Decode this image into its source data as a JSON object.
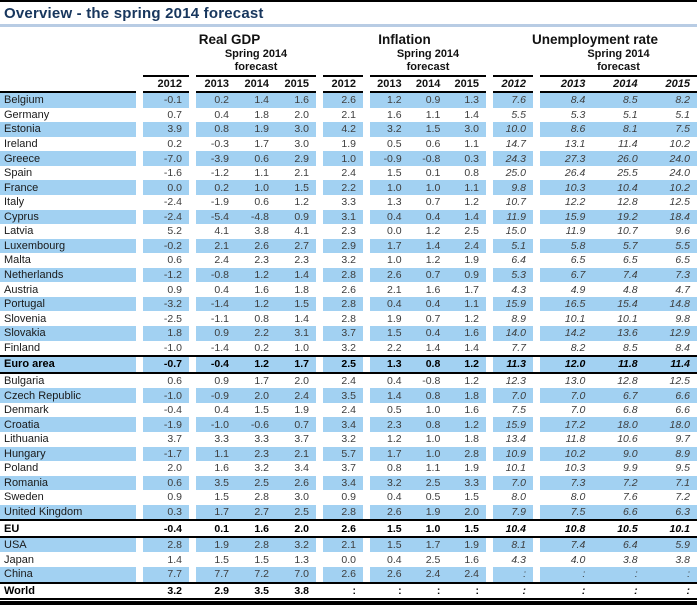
{
  "title": "Overview - the spring 2014 forecast",
  "table": {
    "groups": [
      {
        "label": "Real GDP",
        "forecast_line1": "Spring 2014",
        "forecast_line2": "forecast",
        "years": [
          "2012",
          "2013",
          "2014",
          "2015"
        ]
      },
      {
        "label": "Inflation",
        "forecast_line1": "Spring 2014",
        "forecast_line2": "forecast",
        "years": [
          "2012",
          "2013",
          "2014",
          "2015"
        ]
      },
      {
        "label": "Unemployment rate",
        "forecast_line1": "Spring 2014",
        "forecast_line2": "forecast",
        "years": [
          "2012",
          "2013",
          "2014",
          "2015"
        ]
      }
    ],
    "rows": [
      {
        "name": "Belgium",
        "bold": false,
        "gdp": [
          "-0.1",
          "0.2",
          "1.4",
          "1.6"
        ],
        "inflation": [
          "2.6",
          "1.2",
          "0.9",
          "1.3"
        ],
        "unemployment": [
          "7.6",
          "8.4",
          "8.5",
          "8.2"
        ]
      },
      {
        "name": "Germany",
        "bold": false,
        "gdp": [
          "0.7",
          "0.4",
          "1.8",
          "2.0"
        ],
        "inflation": [
          "2.1",
          "1.6",
          "1.1",
          "1.4"
        ],
        "unemployment": [
          "5.5",
          "5.3",
          "5.1",
          "5.1"
        ]
      },
      {
        "name": "Estonia",
        "bold": false,
        "gdp": [
          "3.9",
          "0.8",
          "1.9",
          "3.0"
        ],
        "inflation": [
          "4.2",
          "3.2",
          "1.5",
          "3.0"
        ],
        "unemployment": [
          "10.0",
          "8.6",
          "8.1",
          "7.5"
        ]
      },
      {
        "name": "Ireland",
        "bold": false,
        "gdp": [
          "0.2",
          "-0.3",
          "1.7",
          "3.0"
        ],
        "inflation": [
          "1.9",
          "0.5",
          "0.6",
          "1.1"
        ],
        "unemployment": [
          "14.7",
          "13.1",
          "11.4",
          "10.2"
        ]
      },
      {
        "name": "Greece",
        "bold": false,
        "gdp": [
          "-7.0",
          "-3.9",
          "0.6",
          "2.9"
        ],
        "inflation": [
          "1.0",
          "-0.9",
          "-0.8",
          "0.3"
        ],
        "unemployment": [
          "24.3",
          "27.3",
          "26.0",
          "24.0"
        ]
      },
      {
        "name": "Spain",
        "bold": false,
        "gdp": [
          "-1.6",
          "-1.2",
          "1.1",
          "2.1"
        ],
        "inflation": [
          "2.4",
          "1.5",
          "0.1",
          "0.8"
        ],
        "unemployment": [
          "25.0",
          "26.4",
          "25.5",
          "24.0"
        ]
      },
      {
        "name": "France",
        "bold": false,
        "gdp": [
          "0.0",
          "0.2",
          "1.0",
          "1.5"
        ],
        "inflation": [
          "2.2",
          "1.0",
          "1.0",
          "1.1"
        ],
        "unemployment": [
          "9.8",
          "10.3",
          "10.4",
          "10.2"
        ]
      },
      {
        "name": "Italy",
        "bold": false,
        "gdp": [
          "-2.4",
          "-1.9",
          "0.6",
          "1.2"
        ],
        "inflation": [
          "3.3",
          "1.3",
          "0.7",
          "1.2"
        ],
        "unemployment": [
          "10.7",
          "12.2",
          "12.8",
          "12.5"
        ]
      },
      {
        "name": "Cyprus",
        "bold": false,
        "gdp": [
          "-2.4",
          "-5.4",
          "-4.8",
          "0.9"
        ],
        "inflation": [
          "3.1",
          "0.4",
          "0.4",
          "1.4"
        ],
        "unemployment": [
          "11.9",
          "15.9",
          "19.2",
          "18.4"
        ]
      },
      {
        "name": "Latvia",
        "bold": false,
        "gdp": [
          "5.2",
          "4.1",
          "3.8",
          "4.1"
        ],
        "inflation": [
          "2.3",
          "0.0",
          "1.2",
          "2.5"
        ],
        "unemployment": [
          "15.0",
          "11.9",
          "10.7",
          "9.6"
        ]
      },
      {
        "name": "Luxembourg",
        "bold": false,
        "gdp": [
          "-0.2",
          "2.1",
          "2.6",
          "2.7"
        ],
        "inflation": [
          "2.9",
          "1.7",
          "1.4",
          "2.4"
        ],
        "unemployment": [
          "5.1",
          "5.8",
          "5.7",
          "5.5"
        ]
      },
      {
        "name": "Malta",
        "bold": false,
        "gdp": [
          "0.6",
          "2.4",
          "2.3",
          "2.3"
        ],
        "inflation": [
          "3.2",
          "1.0",
          "1.2",
          "1.9"
        ],
        "unemployment": [
          "6.4",
          "6.5",
          "6.5",
          "6.5"
        ]
      },
      {
        "name": "Netherlands",
        "bold": false,
        "gdp": [
          "-1.2",
          "-0.8",
          "1.2",
          "1.4"
        ],
        "inflation": [
          "2.8",
          "2.6",
          "0.7",
          "0.9"
        ],
        "unemployment": [
          "5.3",
          "6.7",
          "7.4",
          "7.3"
        ]
      },
      {
        "name": "Austria",
        "bold": false,
        "gdp": [
          "0.9",
          "0.4",
          "1.6",
          "1.8"
        ],
        "inflation": [
          "2.6",
          "2.1",
          "1.6",
          "1.7"
        ],
        "unemployment": [
          "4.3",
          "4.9",
          "4.8",
          "4.7"
        ]
      },
      {
        "name": "Portugal",
        "bold": false,
        "gdp": [
          "-3.2",
          "-1.4",
          "1.2",
          "1.5"
        ],
        "inflation": [
          "2.8",
          "0.4",
          "0.4",
          "1.1"
        ],
        "unemployment": [
          "15.9",
          "16.5",
          "15.4",
          "14.8"
        ]
      },
      {
        "name": "Slovenia",
        "bold": false,
        "gdp": [
          "-2.5",
          "-1.1",
          "0.8",
          "1.4"
        ],
        "inflation": [
          "2.8",
          "1.9",
          "0.7",
          "1.2"
        ],
        "unemployment": [
          "8.9",
          "10.1",
          "10.1",
          "9.8"
        ]
      },
      {
        "name": "Slovakia",
        "bold": false,
        "gdp": [
          "1.8",
          "0.9",
          "2.2",
          "3.1"
        ],
        "inflation": [
          "3.7",
          "1.5",
          "0.4",
          "1.6"
        ],
        "unemployment": [
          "14.0",
          "14.2",
          "13.6",
          "12.9"
        ]
      },
      {
        "name": "Finland",
        "bold": false,
        "gdp": [
          "-1.0",
          "-1.4",
          "0.2",
          "1.0"
        ],
        "inflation": [
          "3.2",
          "2.2",
          "1.4",
          "1.4"
        ],
        "unemployment": [
          "7.7",
          "8.2",
          "8.5",
          "8.4"
        ]
      },
      {
        "name": "Euro area",
        "bold": true,
        "gdp": [
          "-0.7",
          "-0.4",
          "1.2",
          "1.7"
        ],
        "inflation": [
          "2.5",
          "1.3",
          "0.8",
          "1.2"
        ],
        "unemployment": [
          "11.3",
          "12.0",
          "11.8",
          "11.4"
        ]
      },
      {
        "name": "Bulgaria",
        "bold": false,
        "gdp": [
          "0.6",
          "0.9",
          "1.7",
          "2.0"
        ],
        "inflation": [
          "2.4",
          "0.4",
          "-0.8",
          "1.2"
        ],
        "unemployment": [
          "12.3",
          "13.0",
          "12.8",
          "12.5"
        ]
      },
      {
        "name": "Czech Republic",
        "bold": false,
        "gdp": [
          "-1.0",
          "-0.9",
          "2.0",
          "2.4"
        ],
        "inflation": [
          "3.5",
          "1.4",
          "0.8",
          "1.8"
        ],
        "unemployment": [
          "7.0",
          "7.0",
          "6.7",
          "6.6"
        ]
      },
      {
        "name": "Denmark",
        "bold": false,
        "gdp": [
          "-0.4",
          "0.4",
          "1.5",
          "1.9"
        ],
        "inflation": [
          "2.4",
          "0.5",
          "1.0",
          "1.6"
        ],
        "unemployment": [
          "7.5",
          "7.0",
          "6.8",
          "6.6"
        ]
      },
      {
        "name": "Croatia",
        "bold": false,
        "gdp": [
          "-1.9",
          "-1.0",
          "-0.6",
          "0.7"
        ],
        "inflation": [
          "3.4",
          "2.3",
          "0.8",
          "1.2"
        ],
        "unemployment": [
          "15.9",
          "17.2",
          "18.0",
          "18.0"
        ]
      },
      {
        "name": "Lithuania",
        "bold": false,
        "gdp": [
          "3.7",
          "3.3",
          "3.3",
          "3.7"
        ],
        "inflation": [
          "3.2",
          "1.2",
          "1.0",
          "1.8"
        ],
        "unemployment": [
          "13.4",
          "11.8",
          "10.6",
          "9.7"
        ]
      },
      {
        "name": "Hungary",
        "bold": false,
        "gdp": [
          "-1.7",
          "1.1",
          "2.3",
          "2.1"
        ],
        "inflation": [
          "5.7",
          "1.7",
          "1.0",
          "2.8"
        ],
        "unemployment": [
          "10.9",
          "10.2",
          "9.0",
          "8.9"
        ]
      },
      {
        "name": "Poland",
        "bold": false,
        "gdp": [
          "2.0",
          "1.6",
          "3.2",
          "3.4"
        ],
        "inflation": [
          "3.7",
          "0.8",
          "1.1",
          "1.9"
        ],
        "unemployment": [
          "10.1",
          "10.3",
          "9.9",
          "9.5"
        ]
      },
      {
        "name": "Romania",
        "bold": false,
        "gdp": [
          "0.6",
          "3.5",
          "2.5",
          "2.6"
        ],
        "inflation": [
          "3.4",
          "3.2",
          "2.5",
          "3.3"
        ],
        "unemployment": [
          "7.0",
          "7.3",
          "7.2",
          "7.1"
        ]
      },
      {
        "name": "Sweden",
        "bold": false,
        "gdp": [
          "0.9",
          "1.5",
          "2.8",
          "3.0"
        ],
        "inflation": [
          "0.9",
          "0.4",
          "0.5",
          "1.5"
        ],
        "unemployment": [
          "8.0",
          "8.0",
          "7.6",
          "7.2"
        ]
      },
      {
        "name": "United Kingdom",
        "bold": false,
        "gdp": [
          "0.3",
          "1.7",
          "2.7",
          "2.5"
        ],
        "inflation": [
          "2.8",
          "2.6",
          "1.9",
          "2.0"
        ],
        "unemployment": [
          "7.9",
          "7.5",
          "6.6",
          "6.3"
        ]
      },
      {
        "name": "EU",
        "bold": true,
        "gdp": [
          "-0.4",
          "0.1",
          "1.6",
          "2.0"
        ],
        "inflation": [
          "2.6",
          "1.5",
          "1.0",
          "1.5"
        ],
        "unemployment": [
          "10.4",
          "10.8",
          "10.5",
          "10.1"
        ]
      },
      {
        "name": "USA",
        "bold": false,
        "gdp": [
          "2.8",
          "1.9",
          "2.8",
          "3.2"
        ],
        "inflation": [
          "2.1",
          "1.5",
          "1.7",
          "1.9"
        ],
        "unemployment": [
          "8.1",
          "7.4",
          "6.4",
          "5.9"
        ]
      },
      {
        "name": "Japan",
        "bold": false,
        "gdp": [
          "1.4",
          "1.5",
          "1.5",
          "1.3"
        ],
        "inflation": [
          "0.0",
          "0.4",
          "2.5",
          "1.6"
        ],
        "unemployment": [
          "4.3",
          "4.0",
          "3.8",
          "3.8"
        ]
      },
      {
        "name": "China",
        "bold": false,
        "gdp": [
          "7.7",
          "7.7",
          "7.2",
          "7.0"
        ],
        "inflation": [
          "2.6",
          "2.6",
          "2.4",
          "2.4"
        ],
        "unemployment": [
          ":",
          ":",
          ":",
          ":"
        ]
      },
      {
        "name": "World",
        "bold": true,
        "gdp": [
          "3.2",
          "2.9",
          "3.5",
          "3.8"
        ],
        "inflation": [
          ":",
          ":",
          ":",
          ":"
        ],
        "unemployment": [
          ":",
          ":",
          ":",
          ":"
        ]
      }
    ]
  },
  "colors": {
    "row_blue": "#A2D1F2",
    "title_text": "#17365D",
    "title_underline": "#B8CCE4",
    "line_black": "#000000",
    "number_text": "#3d3d3d"
  }
}
